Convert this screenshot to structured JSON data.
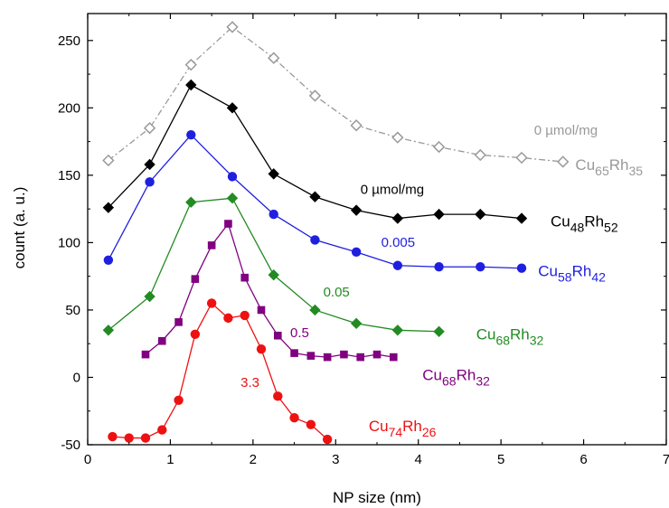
{
  "chart_data": {
    "type": "line",
    "title": "",
    "xlabel": "NP size (nm)",
    "ylabel": "count (a. u.)",
    "xlim": [
      0,
      7
    ],
    "ylim": [
      -50,
      270
    ],
    "xticks": [
      0,
      1,
      2,
      3,
      4,
      5,
      6,
      7
    ],
    "yticks": [
      -50,
      0,
      50,
      100,
      150,
      200,
      250
    ],
    "grid": false,
    "series": [
      {
        "color": "#999999",
        "marker": "diamond-open",
        "line": "dashdot",
        "x": [
          0.25,
          0.75,
          1.25,
          1.75,
          2.25,
          2.75,
          3.25,
          3.75,
          4.25,
          4.75,
          5.25,
          5.75
        ],
        "y": [
          161,
          185,
          232,
          260,
          237,
          209,
          187,
          178,
          171,
          165,
          163,
          160
        ]
      },
      {
        "color": "#000000",
        "marker": "diamond",
        "line": "solid",
        "x": [
          0.25,
          0.75,
          1.25,
          1.75,
          2.25,
          2.75,
          3.25,
          3.75,
          4.25,
          4.75,
          5.25
        ],
        "y": [
          126,
          158,
          217,
          200,
          151,
          134,
          124,
          118,
          121,
          121,
          118
        ]
      },
      {
        "color": "#1f1fe0",
        "marker": "circle",
        "line": "solid",
        "x": [
          0.25,
          0.75,
          1.25,
          1.75,
          2.25,
          2.75,
          3.25,
          3.75,
          4.25,
          4.75,
          5.25
        ],
        "y": [
          87,
          145,
          180,
          149,
          121,
          102,
          93,
          83,
          82,
          82,
          81
        ]
      },
      {
        "color": "#228b22",
        "marker": "diamond",
        "line": "solid",
        "x": [
          0.25,
          0.75,
          1.25,
          1.75,
          2.25,
          2.75,
          3.25,
          3.75,
          4.25
        ],
        "y": [
          35,
          60,
          130,
          133,
          76,
          50,
          40,
          35,
          34
        ]
      },
      {
        "color": "#800080",
        "marker": "square",
        "line": "solid",
        "x": [
          0.7,
          0.9,
          1.1,
          1.3,
          1.5,
          1.7,
          1.9,
          2.1,
          2.3,
          2.5,
          2.7,
          2.9,
          3.1,
          3.3,
          3.5,
          3.7
        ],
        "y": [
          17,
          27,
          41,
          73,
          98,
          114,
          74,
          50,
          31,
          18,
          16,
          15,
          17,
          15,
          17,
          15
        ]
      },
      {
        "color": "#ee1111",
        "marker": "circle",
        "line": "solid",
        "x": [
          0.3,
          0.5,
          0.7,
          0.9,
          1.1,
          1.3,
          1.5,
          1.7,
          1.9,
          2.1,
          2.3,
          2.5,
          2.7,
          2.9
        ],
        "y": [
          -44,
          -45,
          -45,
          -39,
          -17,
          32,
          55,
          44,
          46,
          21,
          -14,
          -30,
          -35,
          -46
        ]
      }
    ],
    "annotations": [
      {
        "text": "0 µmol/mg",
        "x": 5.4,
        "y": 180,
        "color": "#999999"
      },
      {
        "text": "0 µmol/mg",
        "x": 3.3,
        "y": 136,
        "color": "#000000"
      },
      {
        "text": "0.005",
        "x": 3.55,
        "y": 97,
        "color": "#1f1fe0"
      },
      {
        "text": "0.05",
        "x": 2.85,
        "y": 60,
        "color": "#228b22"
      },
      {
        "text": "0.5",
        "x": 2.45,
        "y": 30,
        "color": "#800080"
      },
      {
        "text": "3.3",
        "x": 1.85,
        "y": -7,
        "color": "#ee1111"
      }
    ],
    "composition_labels": [
      {
        "el1": "Cu",
        "sub1": "65",
        "el2": "Rh",
        "sub2": "35",
        "x": 5.9,
        "y": 154,
        "color": "#999999"
      },
      {
        "el1": "Cu",
        "sub1": "48",
        "el2": "Rh",
        "sub2": "52",
        "x": 5.6,
        "y": 112,
        "color": "#000000"
      },
      {
        "el1": "Cu",
        "sub1": "58",
        "el2": "Rh",
        "sub2": "42",
        "x": 5.45,
        "y": 75,
        "color": "#1f1fe0"
      },
      {
        "el1": "Cu",
        "sub1": "68",
        "el2": "Rh",
        "sub2": "32",
        "x": 4.7,
        "y": 28,
        "color": "#228b22"
      },
      {
        "el1": "Cu",
        "sub1": "68",
        "el2": "Rh",
        "sub2": "32",
        "x": 4.05,
        "y": -2,
        "color": "#800080"
      },
      {
        "el1": "Cu",
        "sub1": "74",
        "el2": "Rh",
        "sub2": "26",
        "x": 3.4,
        "y": -40,
        "color": "#ee1111"
      }
    ]
  }
}
